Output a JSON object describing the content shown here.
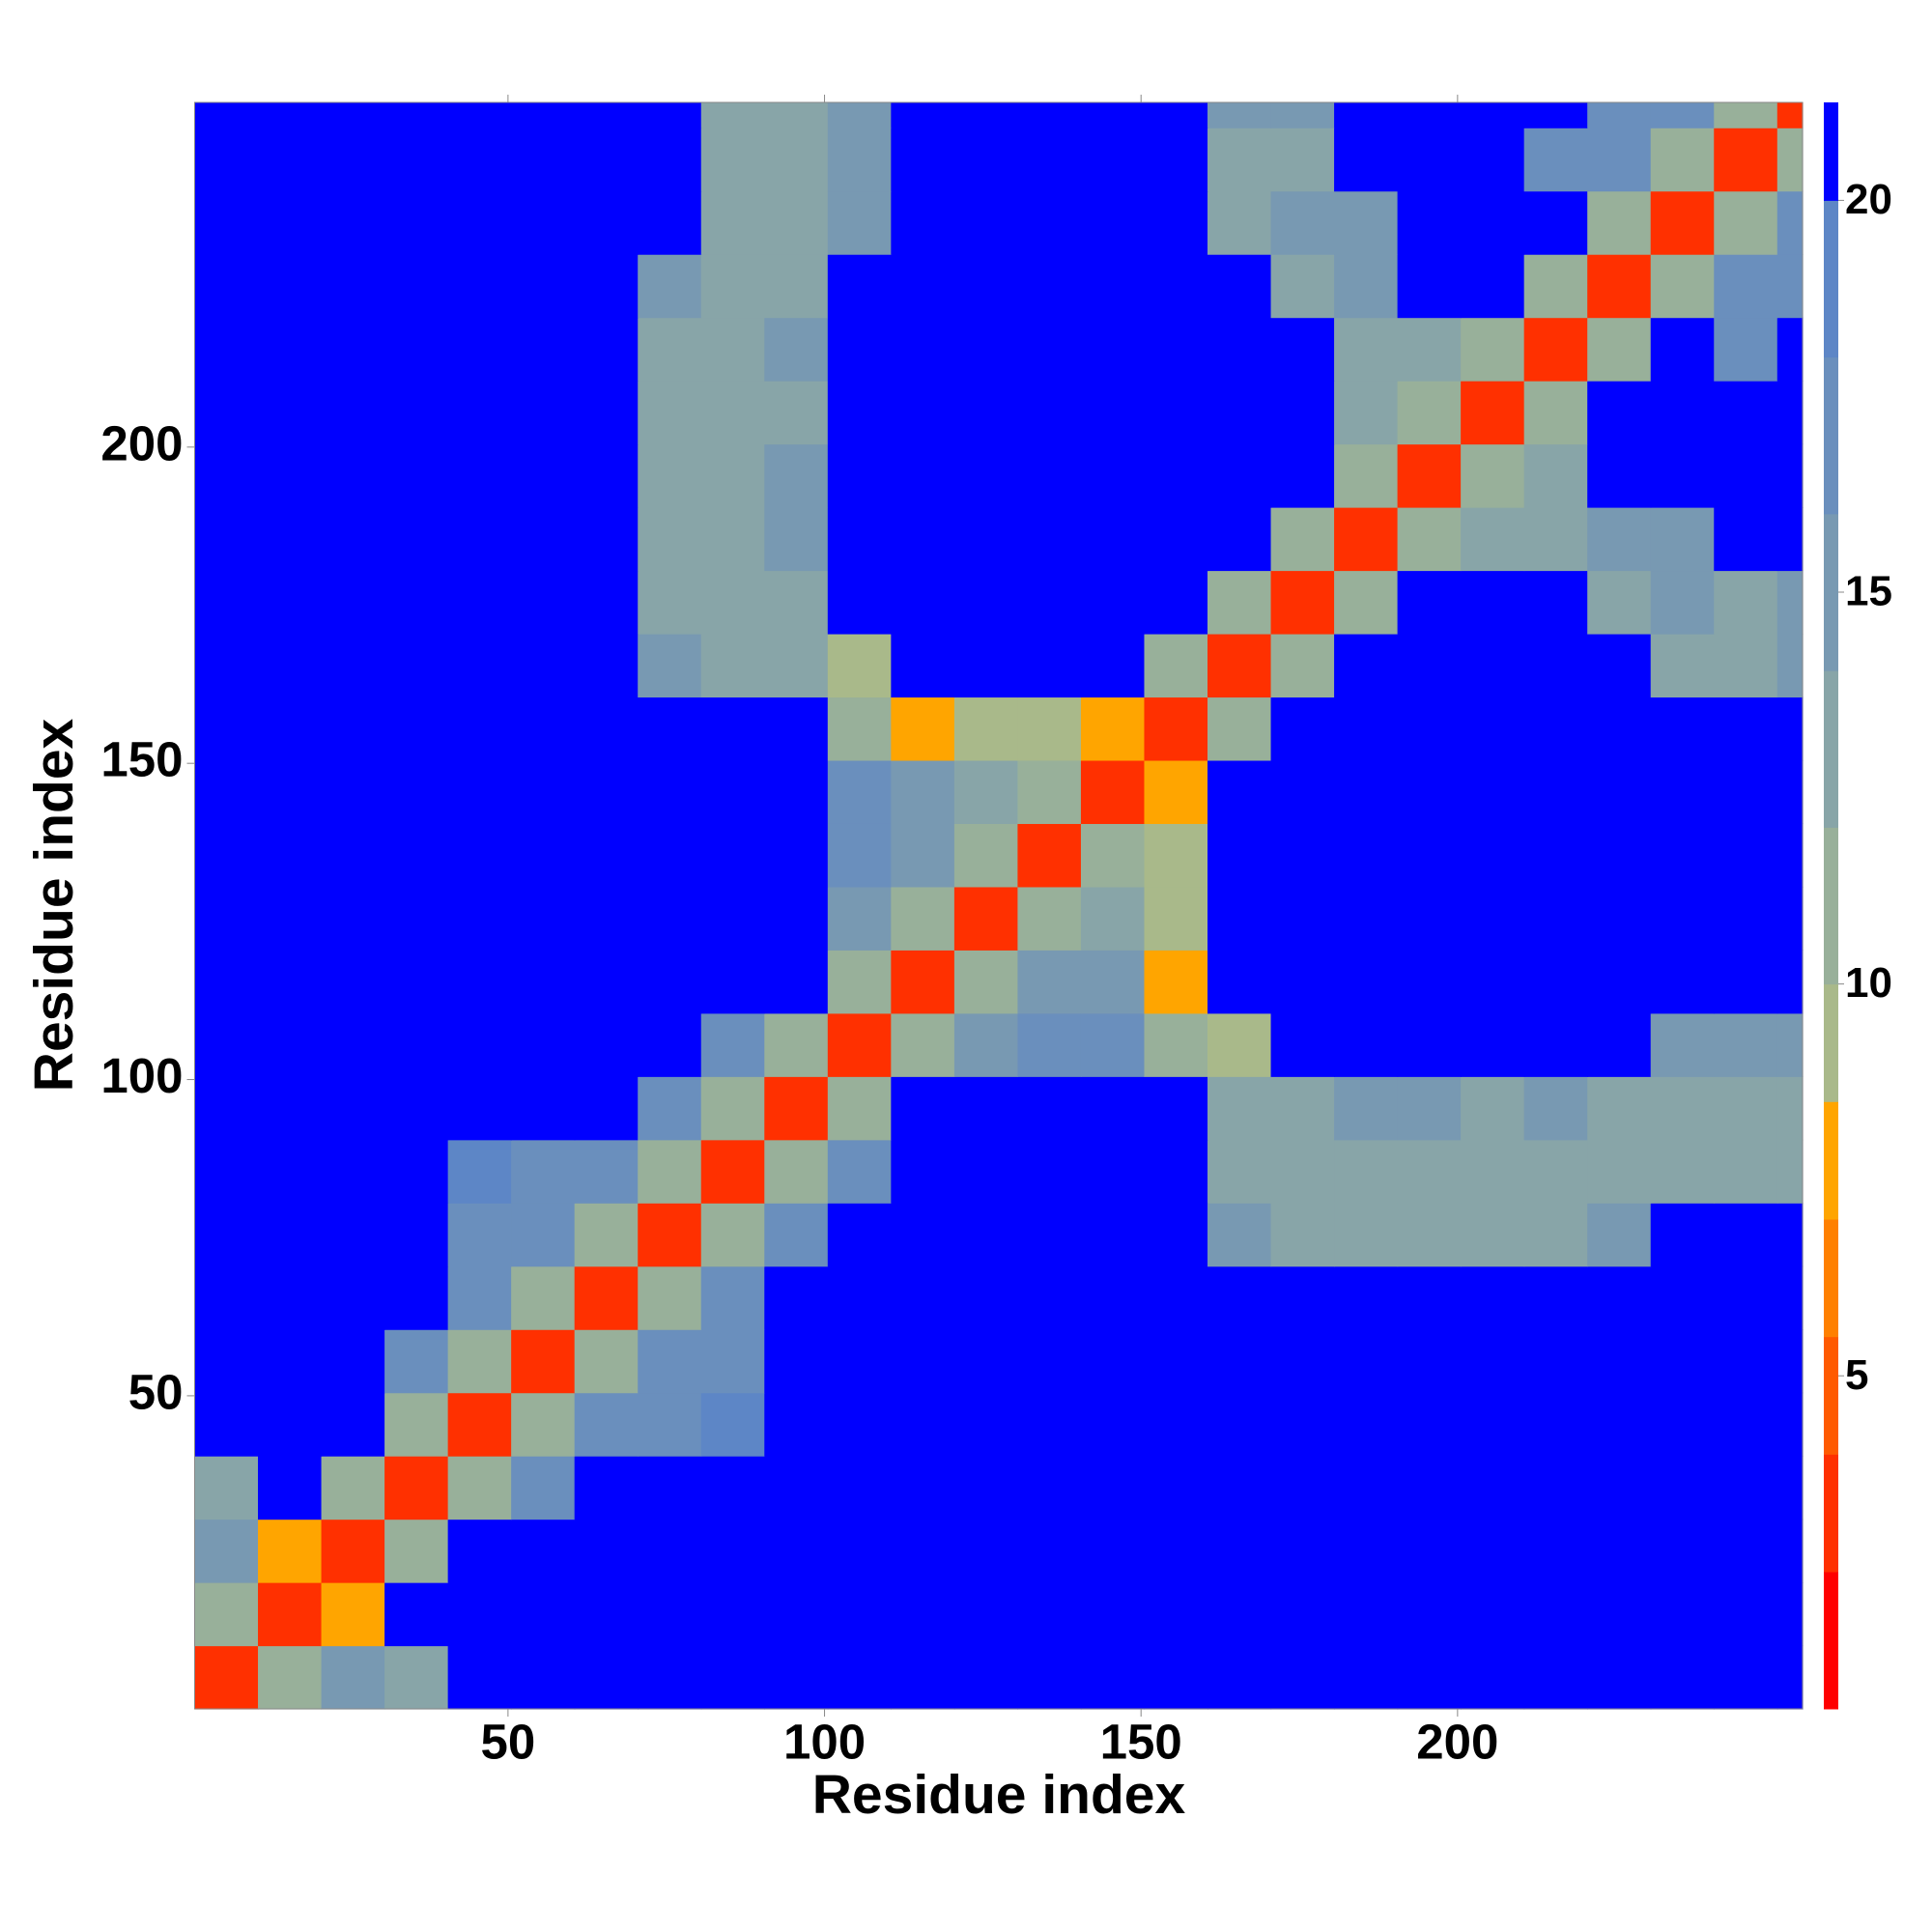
{
  "chart_data": {
    "type": "heatmap",
    "x_label": "Residue index",
    "y_label": "Residue index",
    "x_bins": [
      0.5,
      10.5,
      20.5,
      30.5,
      40.5,
      50.5,
      60.5,
      70.5,
      80.5,
      90.5,
      100.5,
      110.5,
      120.5,
      130.5,
      140.5,
      150.5,
      160.5,
      170.5,
      180.5,
      190.5,
      200.5,
      210.5,
      220.5,
      230.5,
      240.5,
      250.5,
      254.5
    ],
    "y_bins": [
      0.5,
      10.5,
      20.5,
      30.5,
      40.5,
      50.5,
      60.5,
      70.5,
      80.5,
      90.5,
      100.5,
      110.5,
      120.5,
      130.5,
      140.5,
      150.5,
      160.5,
      170.5,
      180.5,
      190.5,
      200.5,
      210.5,
      220.5,
      230.5,
      240.5,
      250.5,
      254.5
    ],
    "xlim": [
      0.5,
      254.5
    ],
    "ylim": [
      0.5,
      254.5
    ],
    "xticks": [
      50,
      100,
      150,
      200
    ],
    "yticks": [
      50,
      100,
      150,
      200
    ],
    "zlim": [
      0.75,
      21.25
    ],
    "zticks": [
      5,
      10,
      15,
      20
    ],
    "colorscale": [
      {
        "to": 2.5,
        "color": "#ff0000"
      },
      {
        "to": 4,
        "color": "#ff3000"
      },
      {
        "to": 5.5,
        "color": "#ff5a00"
      },
      {
        "to": 7,
        "color": "#ff8000"
      },
      {
        "to": 8.5,
        "color": "#ffa500"
      },
      {
        "to": 10,
        "color": "#a9b98a"
      },
      {
        "to": 12,
        "color": "#98b09a"
      },
      {
        "to": 14,
        "color": "#88a5a8"
      },
      {
        "to": 16,
        "color": "#7899b2"
      },
      {
        "to": 18,
        "color": "#6a8fbd"
      },
      {
        "to": 20,
        "color": "#5d86c6"
      },
      {
        "to": 21.25,
        "color": "#0000ff"
      }
    ],
    "z": [
      [
        3,
        12,
        16,
        13,
        21,
        21,
        21,
        21,
        21,
        21,
        21,
        21,
        21,
        21,
        21,
        21,
        21,
        21,
        21,
        21,
        21,
        21,
        21,
        21,
        21,
        21
      ],
      [
        12,
        3,
        8,
        21,
        21,
        21,
        21,
        21,
        21,
        21,
        21,
        21,
        21,
        21,
        21,
        21,
        21,
        21,
        21,
        21,
        21,
        21,
        21,
        21,
        21,
        21
      ],
      [
        16,
        8,
        3,
        12,
        21,
        21,
        21,
        21,
        21,
        21,
        21,
        21,
        21,
        21,
        21,
        21,
        21,
        21,
        21,
        21,
        21,
        21,
        21,
        21,
        21,
        21
      ],
      [
        13,
        21,
        12,
        3,
        12,
        17,
        21,
        21,
        21,
        21,
        21,
        21,
        21,
        21,
        21,
        21,
        21,
        21,
        21,
        21,
        21,
        21,
        21,
        21,
        21,
        21
      ],
      [
        21,
        21,
        21,
        12,
        3,
        12,
        17,
        18,
        19,
        21,
        21,
        21,
        21,
        21,
        21,
        21,
        21,
        21,
        21,
        21,
        21,
        21,
        21,
        21,
        21,
        21
      ],
      [
        21,
        21,
        21,
        17,
        12,
        3,
        12,
        17,
        18,
        21,
        21,
        21,
        21,
        21,
        21,
        21,
        21,
        21,
        21,
        21,
        21,
        21,
        21,
        21,
        21,
        21
      ],
      [
        21,
        21,
        21,
        21,
        17,
        12,
        3,
        12,
        17,
        21,
        21,
        21,
        21,
        21,
        21,
        21,
        21,
        21,
        21,
        21,
        21,
        21,
        21,
        21,
        21,
        21
      ],
      [
        21,
        21,
        21,
        21,
        18,
        17,
        12,
        3,
        12,
        17,
        21,
        21,
        21,
        21,
        21,
        21,
        15,
        14,
        14,
        14,
        14,
        14,
        15,
        21,
        21,
        21
      ],
      [
        21,
        21,
        21,
        21,
        19,
        18,
        17,
        12,
        3,
        12,
        17,
        21,
        21,
        21,
        21,
        21,
        14,
        14,
        14,
        14,
        14,
        14,
        14,
        14,
        14,
        14
      ],
      [
        21,
        21,
        21,
        21,
        21,
        21,
        21,
        17,
        12,
        3,
        12,
        21,
        21,
        21,
        21,
        21,
        14,
        14,
        15,
        15,
        14,
        15,
        14,
        13,
        13,
        14
      ],
      [
        21,
        21,
        21,
        21,
        21,
        21,
        21,
        21,
        17,
        12,
        3,
        12,
        16,
        17,
        17,
        12,
        9,
        21,
        21,
        21,
        21,
        21,
        21,
        16,
        16,
        16
      ],
      [
        21,
        21,
        21,
        21,
        21,
        21,
        21,
        21,
        21,
        21,
        12,
        3,
        12,
        15,
        15,
        8,
        21,
        21,
        21,
        21,
        21,
        21,
        21,
        21,
        21,
        21
      ],
      [
        21,
        21,
        21,
        21,
        21,
        21,
        21,
        21,
        21,
        21,
        16,
        12,
        3,
        12,
        14,
        10,
        21,
        21,
        21,
        21,
        21,
        21,
        21,
        21,
        21,
        21
      ],
      [
        21,
        21,
        21,
        21,
        21,
        21,
        21,
        21,
        21,
        21,
        17,
        15,
        12,
        3,
        12,
        10,
        21,
        21,
        21,
        21,
        21,
        21,
        21,
        21,
        21,
        21
      ],
      [
        21,
        21,
        21,
        21,
        21,
        21,
        21,
        21,
        21,
        21,
        17,
        15,
        14,
        12,
        3,
        8,
        21,
        21,
        21,
        21,
        21,
        21,
        21,
        21,
        21,
        21
      ],
      [
        21,
        21,
        21,
        21,
        21,
        21,
        21,
        21,
        21,
        21,
        12,
        8,
        10,
        10,
        8,
        3,
        12,
        21,
        21,
        21,
        21,
        21,
        21,
        21,
        21,
        21
      ],
      [
        21,
        21,
        21,
        21,
        21,
        21,
        21,
        15,
        14,
        14,
        9,
        21,
        21,
        21,
        21,
        12,
        3,
        12,
        21,
        21,
        21,
        21,
        21,
        14,
        14,
        15
      ],
      [
        21,
        21,
        21,
        21,
        21,
        21,
        21,
        14,
        14,
        14,
        21,
        21,
        21,
        21,
        21,
        21,
        12,
        3,
        12,
        21,
        21,
        21,
        14,
        15,
        14,
        15
      ],
      [
        21,
        21,
        21,
        21,
        21,
        21,
        21,
        14,
        14,
        15,
        21,
        21,
        21,
        21,
        21,
        21,
        21,
        12,
        3,
        12,
        13,
        14,
        15,
        15,
        21,
        21
      ],
      [
        21,
        21,
        21,
        21,
        21,
        21,
        21,
        14,
        14,
        15,
        21,
        21,
        21,
        21,
        21,
        21,
        21,
        21,
        12,
        3,
        12,
        14,
        21,
        21,
        21,
        21
      ],
      [
        21,
        21,
        21,
        21,
        21,
        21,
        21,
        14,
        14,
        14,
        21,
        21,
        21,
        21,
        21,
        21,
        21,
        21,
        13,
        12,
        3,
        12,
        21,
        21,
        21,
        21
      ],
      [
        21,
        21,
        21,
        21,
        21,
        21,
        21,
        14,
        14,
        15,
        21,
        21,
        21,
        21,
        21,
        21,
        21,
        21,
        14,
        14,
        12,
        3,
        12,
        21,
        18,
        21
      ],
      [
        21,
        21,
        21,
        21,
        21,
        21,
        21,
        15,
        14,
        14,
        21,
        21,
        21,
        21,
        21,
        21,
        21,
        14,
        15,
        21,
        21,
        12,
        3,
        12,
        17,
        17
      ],
      [
        21,
        21,
        21,
        21,
        21,
        21,
        21,
        21,
        14,
        13,
        16,
        21,
        21,
        21,
        21,
        21,
        14,
        15,
        15,
        21,
        21,
        21,
        12,
        3,
        12,
        17
      ],
      [
        21,
        21,
        21,
        21,
        21,
        21,
        21,
        21,
        14,
        13,
        16,
        21,
        21,
        21,
        21,
        21,
        14,
        14,
        21,
        21,
        21,
        18,
        17,
        12,
        3,
        12
      ],
      [
        21,
        21,
        21,
        21,
        21,
        21,
        21,
        21,
        14,
        14,
        16,
        21,
        21,
        21,
        21,
        21,
        15,
        15,
        21,
        21,
        21,
        21,
        17,
        17,
        12,
        3
      ]
    ]
  }
}
